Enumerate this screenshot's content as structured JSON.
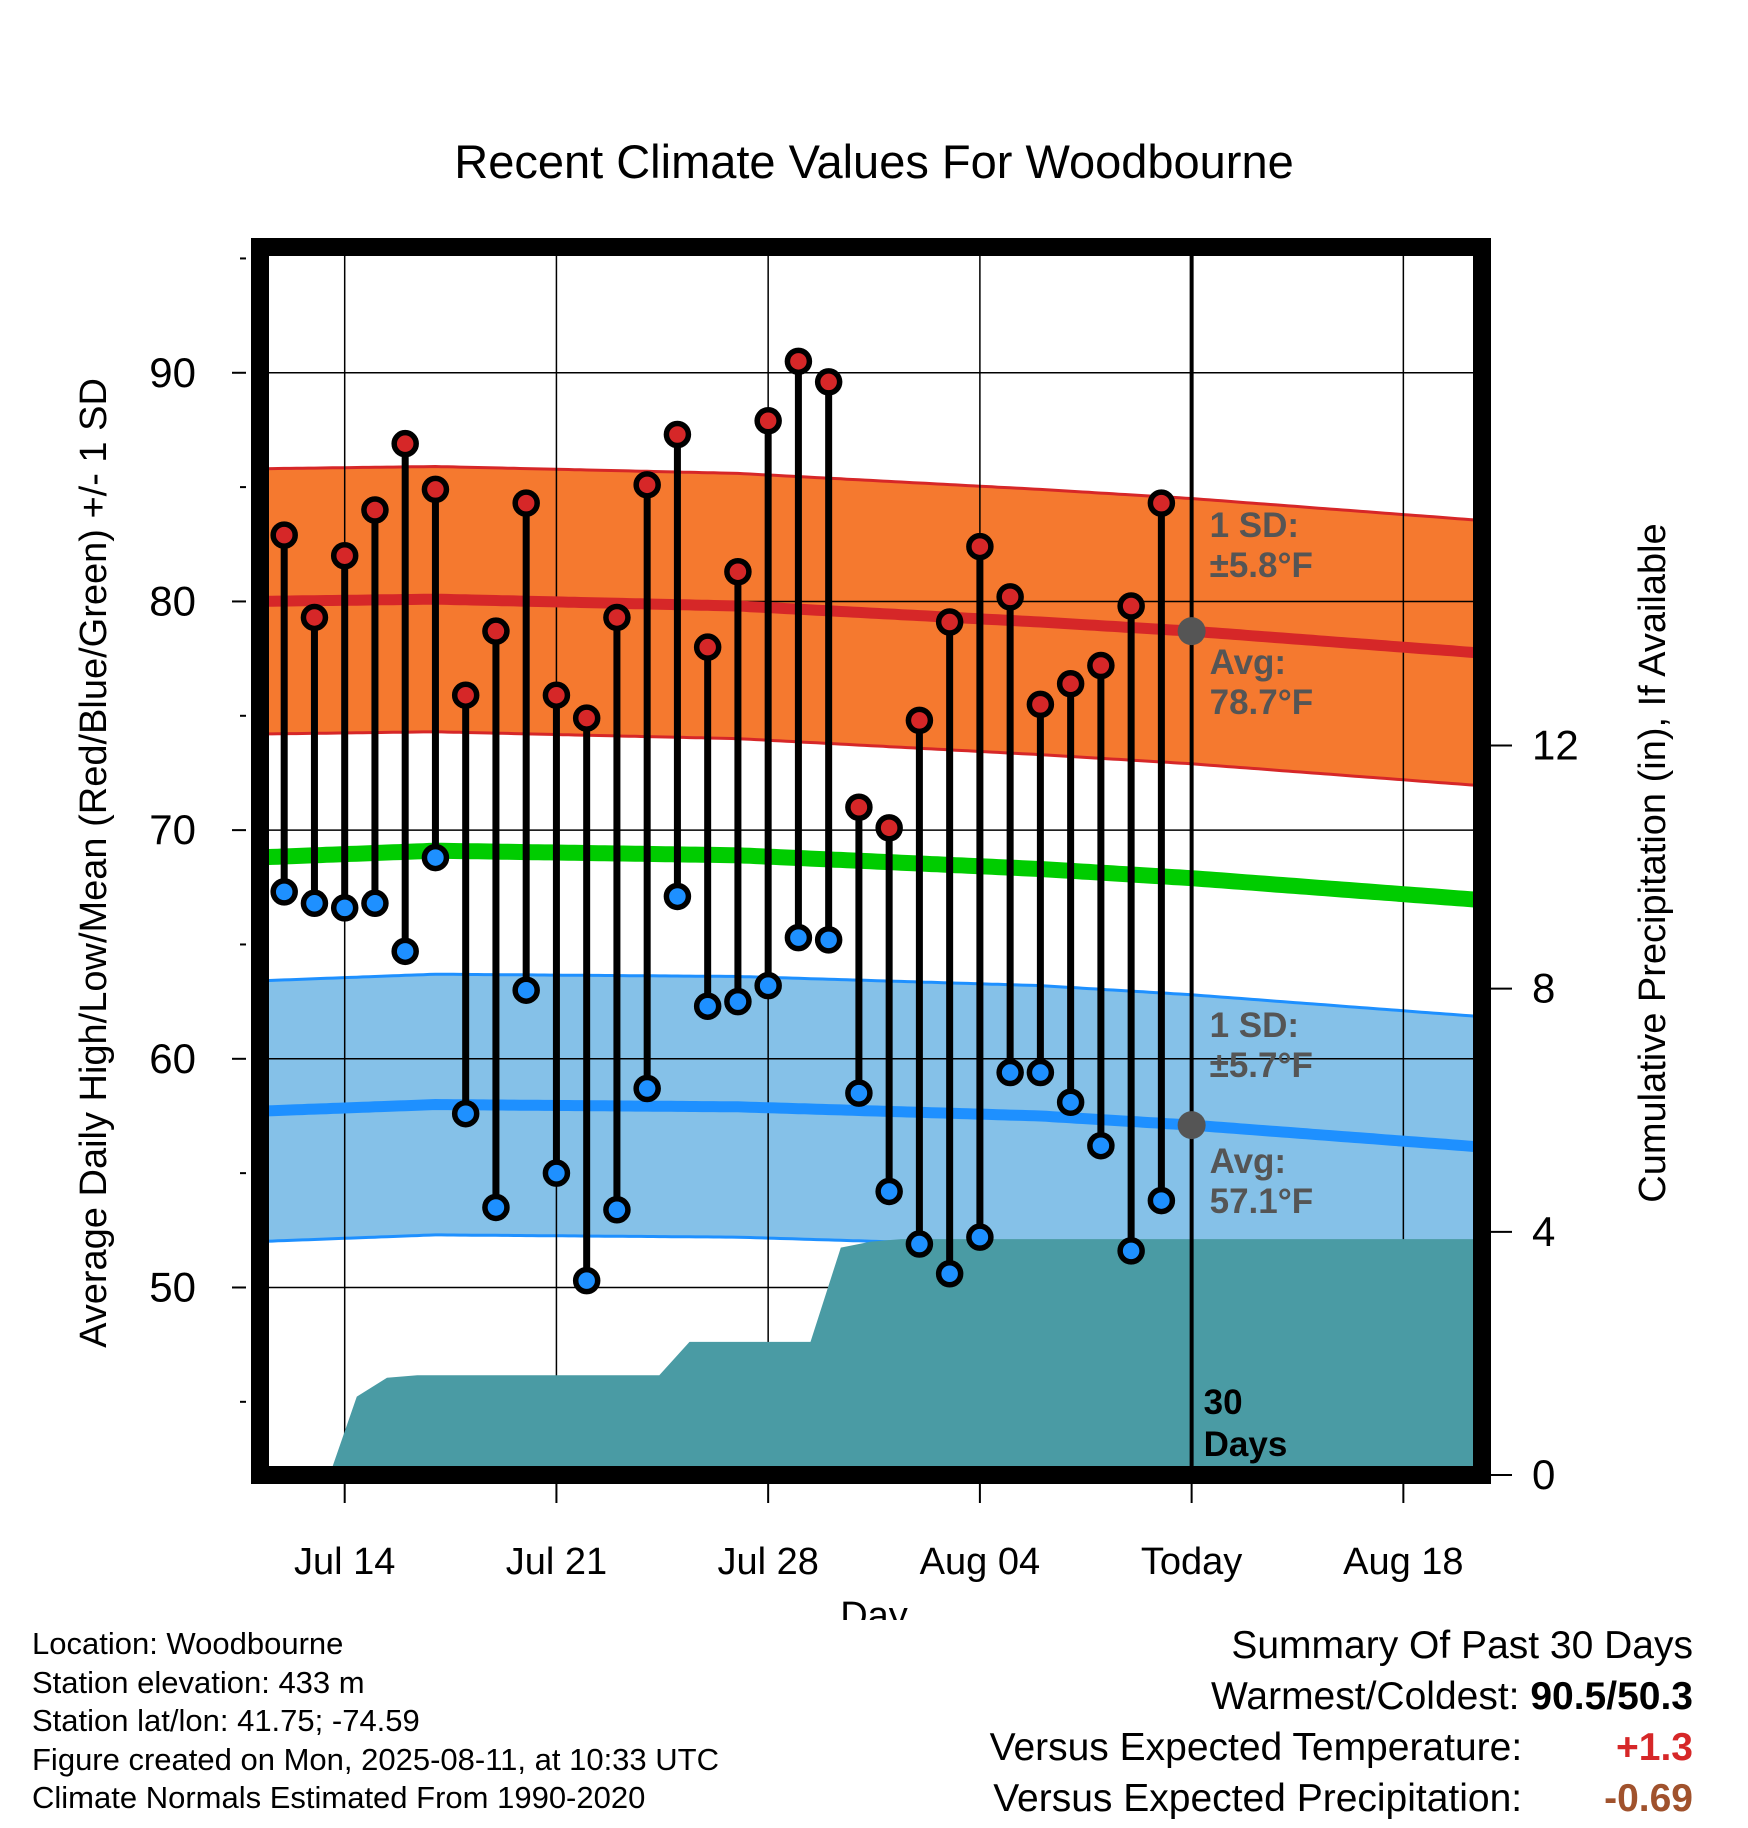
{
  "chart_data": {
    "type": "line",
    "title": "Recent Climate Values For Woodbourne",
    "xlabel": "Day",
    "ylabel": "Average Daily High/Low/Mean (Red/Blue/Green) +/- 1 SD",
    "y2label": "Cumulative Precipitation (in), If Available",
    "x_tick_labels": [
      "Jul 14",
      "Jul 21",
      "Jul 28",
      "Aug 04",
      "Today",
      "Aug 18"
    ],
    "y_ticks": [
      "50",
      "60",
      "70",
      "80",
      "90"
    ],
    "y2_ticks": [
      "0",
      "4",
      "8",
      "12"
    ],
    "ylim": [
      41.8,
      95.5
    ],
    "y2lim": [
      0,
      20.2
    ],
    "x_range_days_from_today": [
      -30.8,
      9.6
    ],
    "colors": {
      "high": "#d62728",
      "low": "#1e90ff",
      "mean": "#00cc00",
      "high_band": "#f5792f",
      "low_band": "#85c1e8",
      "precip": "#4a9ba4",
      "today_marker": "#555555"
    },
    "days_from_today": [
      -30,
      -29,
      -28,
      -27,
      -26,
      -25,
      -24,
      -23,
      -22,
      -21,
      -20,
      -19,
      -18,
      -17,
      -16,
      -15,
      -14,
      -13,
      -12,
      -11,
      -10,
      -9,
      -8,
      -7,
      -6,
      -5,
      -4,
      -3,
      -2,
      -1
    ],
    "series": [
      {
        "name": "High",
        "values": [
          82.9,
          79.3,
          82.0,
          84.0,
          86.9,
          84.9,
          75.9,
          78.7,
          84.3,
          75.9,
          74.9,
          79.3,
          85.1,
          87.3,
          78.0,
          81.3,
          87.9,
          90.5,
          89.6,
          71.0,
          70.1,
          74.8,
          79.1,
          82.4,
          80.2,
          75.5,
          76.4,
          77.2,
          79.8,
          84.3
        ]
      },
      {
        "name": "Low",
        "values": [
          67.3,
          66.8,
          66.6,
          66.8,
          64.7,
          68.8,
          57.6,
          53.5,
          63.0,
          55.0,
          50.3,
          53.4,
          58.7,
          67.1,
          62.3,
          62.5,
          63.2,
          65.3,
          65.2,
          58.5,
          54.2,
          51.9,
          50.6,
          52.2,
          59.4,
          59.4,
          58.1,
          56.2,
          51.6,
          53.8
        ]
      }
    ],
    "normals": {
      "days_from_today": [
        -31,
        -25,
        -15,
        -5,
        0,
        10
      ],
      "high_mean": [
        80.0,
        80.1,
        79.8,
        79.1,
        78.7,
        77.7
      ],
      "high_sd": 5.8,
      "low_mean": [
        57.7,
        58.0,
        57.9,
        57.5,
        57.1,
        56.1
      ],
      "low_sd": 5.7,
      "mean": [
        68.8,
        69.1,
        68.9,
        68.3,
        67.9,
        66.9
      ]
    },
    "precipitation": {
      "days_from_today": [
        -28.5,
        -27.6,
        -26.6,
        -25.6,
        -17.6,
        -16.6,
        -12.6,
        -11.6,
        -10.6,
        -9.6,
        9.6
      ],
      "values": [
        0.0,
        1.29,
        1.6,
        1.64,
        1.64,
        2.19,
        2.19,
        3.74,
        3.84,
        3.88,
        3.88
      ]
    },
    "annotations": {
      "high_sd": "1 SD:",
      "high_sd_value": "±5.8°F",
      "high_avg": "Avg:",
      "high_avg_value": "78.7°F",
      "low_sd": "1 SD:",
      "low_sd_value": "±5.7°F",
      "low_avg": "Avg:",
      "low_avg_value": "57.1°F",
      "days_line1": "30",
      "days_line2": "Days"
    }
  },
  "info": {
    "location": "Location: Woodbourne",
    "elevation": "Station elevation: 433 m",
    "latlon": "Station lat/lon: 41.75; -74.59",
    "created": "Figure created on Mon, 2025-08-11, at 10:33 UTC",
    "normals": "Climate Normals Estimated From 1990-2020"
  },
  "summary": {
    "heading": "Summary Of Past 30 Days",
    "warm_cold_label": "Warmest/Coldest:",
    "warm_cold_value": "90.5/50.3",
    "temp_label": "Versus Expected Temperature:",
    "temp_value": "+1.3",
    "temp_color": "#d62728",
    "precip_label": "Versus Expected Precipitation:",
    "precip_value": "-0.69",
    "precip_color": "#a0522d"
  }
}
